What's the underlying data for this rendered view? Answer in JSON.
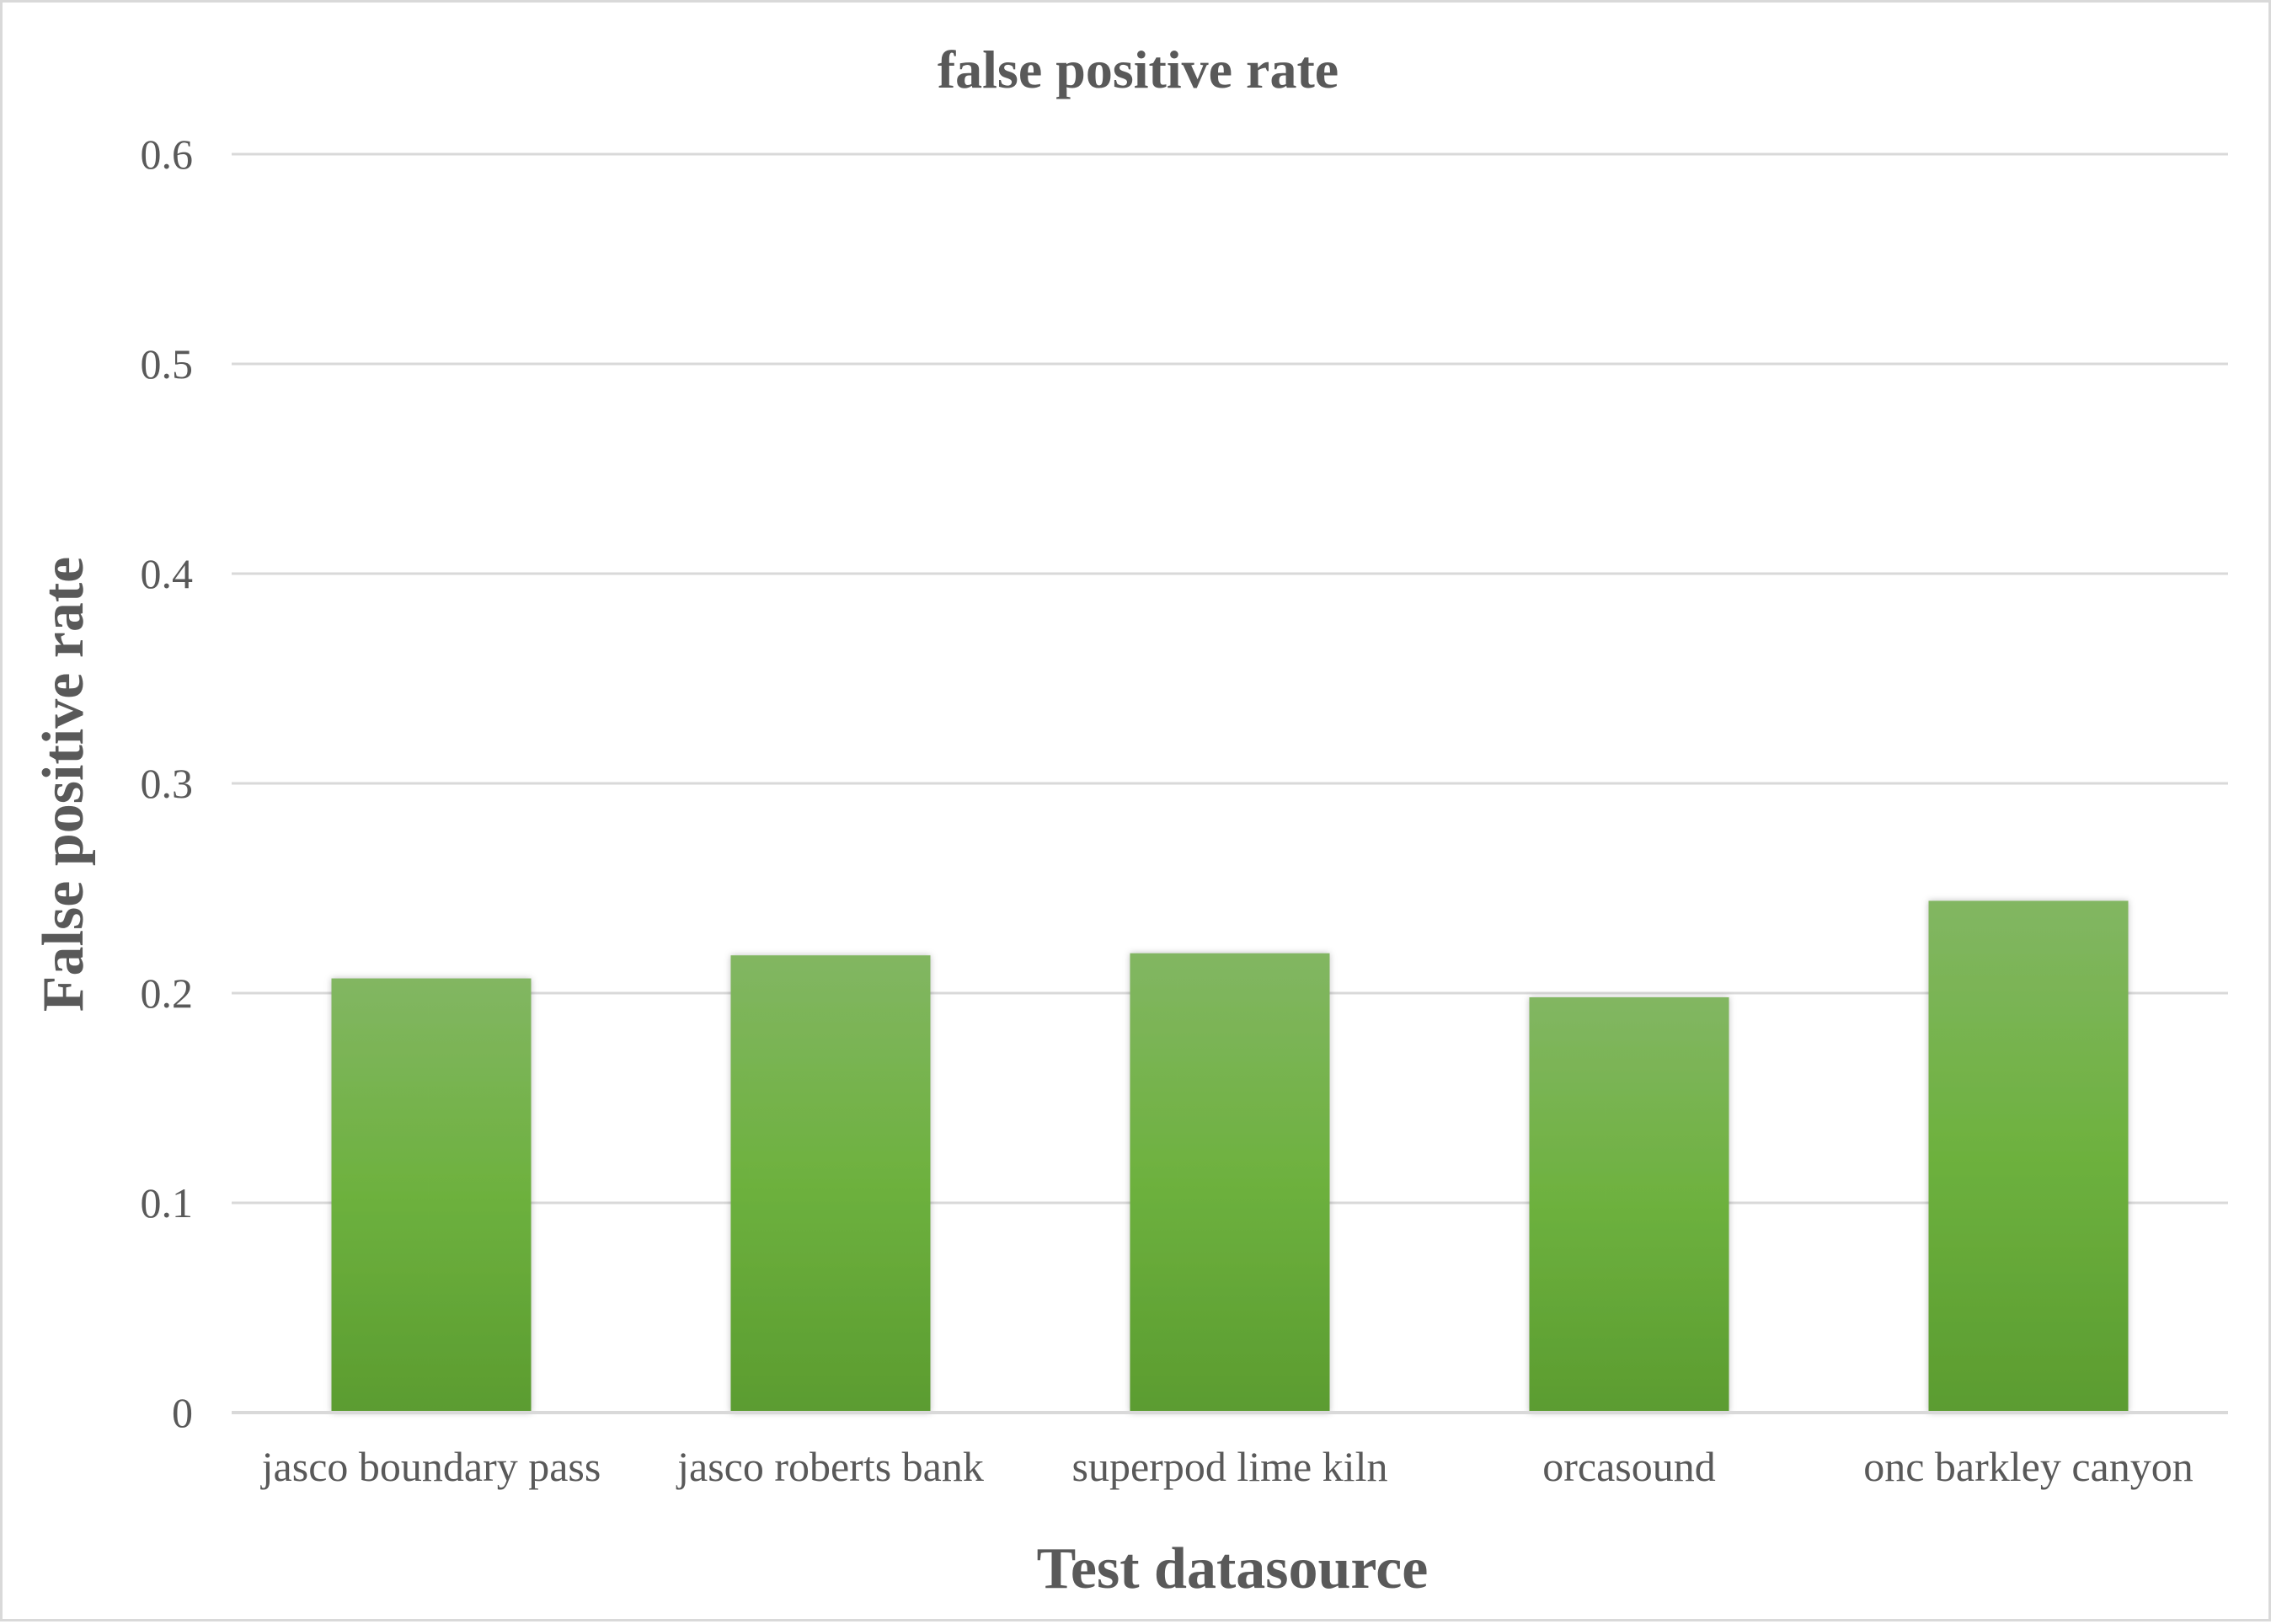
{
  "chart_data": {
    "type": "bar",
    "title": "false positive rate",
    "xlabel": "Test datasource",
    "ylabel": "False positive rate",
    "categories": [
      "jasco boundary pass",
      "jasco roberts bank",
      "superpod lime kiln",
      "orcasound",
      "onc barkley canyon"
    ],
    "values": [
      0.207,
      0.218,
      0.219,
      0.198,
      0.244
    ],
    "ylim": [
      0,
      0.6
    ],
    "yticks": [
      "0",
      "0.1",
      "0.2",
      "0.3",
      "0.4",
      "0.5",
      "0.6"
    ],
    "grid": true,
    "legend": "none",
    "bar_color_top": "#82b662",
    "bar_color_mid": "#6db13e",
    "bar_color_bottom": "#5b9c30",
    "text_color": "#595959",
    "grid_color": "#d9d9d9"
  }
}
